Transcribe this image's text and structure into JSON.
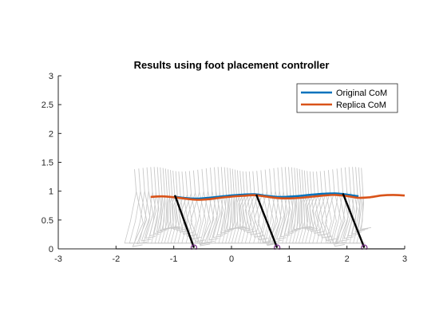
{
  "chart_data": {
    "type": "line",
    "title": "Results using foot placement controller",
    "xlabel": "",
    "ylabel": "",
    "xlim": [
      -3,
      3
    ],
    "ylim": [
      0,
      3
    ],
    "xticks": [
      "-3",
      "-2",
      "-1",
      "0",
      "1",
      "2",
      "3"
    ],
    "yticks": [
      "0",
      "0.5",
      "1",
      "1.5",
      "2",
      "2.5",
      "3"
    ],
    "grid": false,
    "legend_position": "top-right",
    "colors": {
      "original": "#0072BD",
      "replica": "#D95319",
      "leg": "#000000",
      "foot": "#7E2F8E",
      "ghost": "#C8C8C8",
      "axis": "#262626"
    },
    "series": [
      {
        "name": "Original CoM",
        "color": "#0072BD",
        "x": [
          -1.0,
          -0.8,
          -0.6,
          -0.4,
          -0.2,
          0.0,
          0.2,
          0.4,
          0.6,
          0.8,
          1.0,
          1.2,
          1.4,
          1.6,
          1.8,
          2.0,
          2.2
        ],
        "y": [
          0.905,
          0.88,
          0.87,
          0.885,
          0.905,
          0.925,
          0.94,
          0.945,
          0.92,
          0.9,
          0.905,
          0.92,
          0.94,
          0.955,
          0.96,
          0.94,
          0.91
        ]
      },
      {
        "name": "Replica CoM",
        "color": "#D95319",
        "x": [
          -1.4,
          -1.2,
          -1.0,
          -0.8,
          -0.6,
          -0.4,
          -0.2,
          0.0,
          0.2,
          0.4,
          0.6,
          0.8,
          1.0,
          1.2,
          1.4,
          1.6,
          1.8,
          2.0,
          2.2,
          2.4,
          2.6,
          2.8,
          3.0
        ],
        "y": [
          0.9,
          0.91,
          0.895,
          0.87,
          0.85,
          0.86,
          0.885,
          0.905,
          0.92,
          0.93,
          0.905,
          0.88,
          0.875,
          0.885,
          0.905,
          0.925,
          0.935,
          0.915,
          0.885,
          0.895,
          0.925,
          0.935,
          0.925
        ]
      }
    ],
    "legs": [
      {
        "hip": [
          -0.98,
          0.93
        ],
        "foot": [
          -0.65,
          0.02
        ]
      },
      {
        "hip": [
          0.43,
          0.94
        ],
        "foot": [
          0.79,
          0.02
        ]
      },
      {
        "hip": [
          1.93,
          0.96
        ],
        "foot": [
          2.3,
          0.02
        ]
      }
    ],
    "foot_markers": [
      {
        "x": -0.65,
        "y": 0.02
      },
      {
        "x": 0.79,
        "y": 0.02
      },
      {
        "x": 2.3,
        "y": 0.02
      }
    ],
    "ghost_frames": {
      "count": 68,
      "x_start": -1.65,
      "x_end": 2.25
    },
    "ground": {
      "x_start": -2,
      "x_end": 3,
      "y": 0
    }
  }
}
